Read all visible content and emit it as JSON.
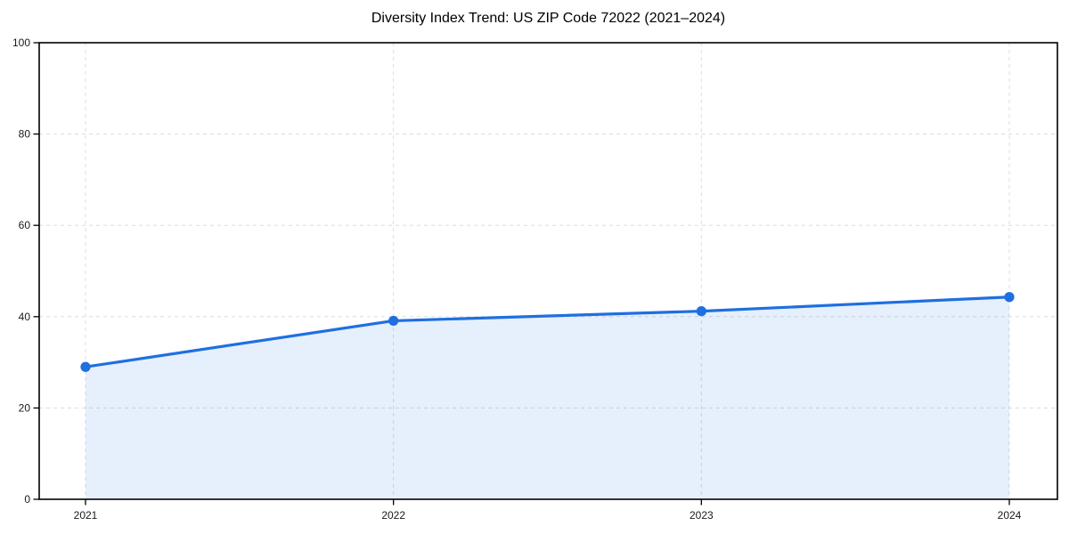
{
  "title": "Diversity Index Trend: US ZIP Code 72022 (2021–2024)",
  "chart_data": {
    "type": "line",
    "title": "Diversity Index Trend: US ZIP Code 72022 (2021–2024)",
    "categories": [
      "2021",
      "2022",
      "2023",
      "2024"
    ],
    "series": [
      {
        "name": "Diversity Index",
        "values": [
          29.0,
          39.1,
          41.2,
          44.3
        ]
      }
    ],
    "xlabel": "",
    "ylabel": "",
    "ylim": [
      0,
      100
    ],
    "yticks": [
      0,
      20,
      40,
      60,
      80,
      100
    ],
    "ytick_labels": [
      "0",
      "20",
      "40",
      "60",
      "80",
      "100"
    ],
    "grid": true,
    "grid_style": "dashed",
    "legend": "none",
    "area_fill": true,
    "marker": "circle",
    "colors": {
      "line": "#1f6fe0",
      "marker": "#1f6fe0",
      "area": "rgba(31,111,224,0.11)",
      "grid": "#dcdcdc",
      "spine": "#000000",
      "tick_text": "#1a1a1a",
      "background": "#ffffff"
    }
  }
}
